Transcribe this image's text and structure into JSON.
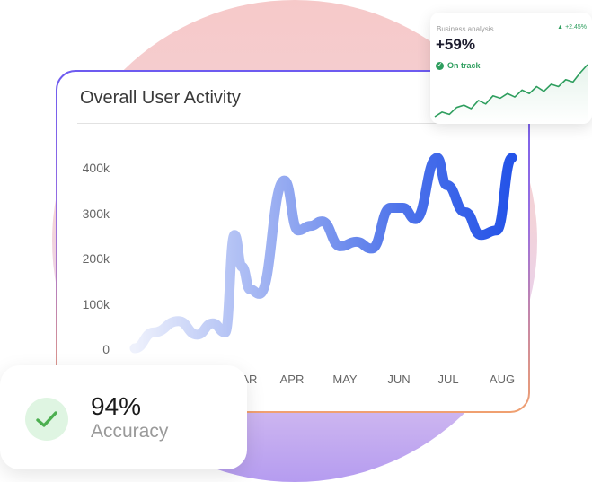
{
  "chart_data": [
    {
      "type": "line",
      "title": "Overall User Activity",
      "categories": [
        "MAR",
        "APR",
        "MAY",
        "JUN",
        "JUL",
        "AUG"
      ],
      "x": [
        0,
        0.3,
        0.7,
        1.0,
        1.25,
        1.45,
        1.6,
        1.72,
        1.85,
        2.0,
        2.4,
        2.62,
        2.82,
        3.0,
        3.3,
        3.55,
        3.8,
        4.1,
        4.3,
        4.5,
        4.85,
        5.0,
        5.3,
        5.55,
        5.8,
        6.05
      ],
      "series": [
        {
          "values": [
            0,
            35,
            60,
            30,
            55,
            35,
            250,
            180,
            130,
            120,
            370,
            260,
            270,
            280,
            225,
            235,
            220,
            310,
            310,
            285,
            420,
            360,
            300,
            250,
            260,
            420
          ]
        }
      ],
      "yticks": [
        "400k",
        "300k",
        "200k",
        "100k",
        "0"
      ],
      "ylim": [
        0,
        420
      ]
    },
    {
      "type": "line",
      "title": "Business analysis",
      "series": [
        {
          "values": [
            10,
            14,
            12,
            18,
            20,
            17,
            24,
            21,
            28,
            26,
            30,
            27,
            33,
            30,
            36,
            32,
            38,
            36,
            42,
            40,
            48,
            55
          ]
        }
      ]
    }
  ],
  "business_card": {
    "label": "Business analysis",
    "delta": "+2.45%",
    "value": "+59%",
    "status": "On track"
  },
  "accuracy_card": {
    "value": "94%",
    "label": "Accuracy"
  },
  "colors": {
    "line_start": "#e9edfb",
    "line_end": "#2453e8",
    "spark": "#2e9e5e"
  }
}
